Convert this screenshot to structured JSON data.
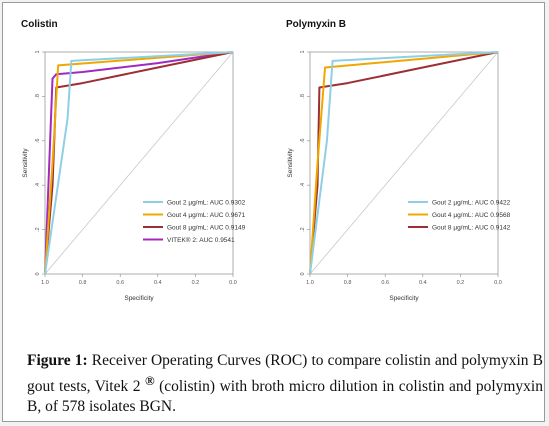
{
  "chart_data": [
    {
      "type": "line",
      "title": "Colistin",
      "xlabel": "Specificity",
      "ylabel": "Sensitivity",
      "x_reversed": true,
      "xlim": [
        1.0,
        0.0
      ],
      "ylim": [
        0.0,
        1.0
      ],
      "xticks": [
        "1.0",
        "0.8",
        "0.6",
        "0.4",
        "0.2",
        "0.0"
      ],
      "yticks": [
        "0",
        ".2",
        ".4",
        ".6",
        ".8",
        "1"
      ],
      "legend_position": "bottom-right",
      "reference_line": true,
      "series": [
        {
          "name": "Gout 2 µg/mL: AUC 0.9302",
          "color": "#8ecfe6",
          "points": [
            [
              1.0,
              0.0
            ],
            [
              0.88,
              0.7
            ],
            [
              0.86,
              0.96
            ],
            [
              0.0,
              1.0
            ]
          ]
        },
        {
          "name": "Gout 4 µg/mL: AUC 0.9671",
          "color": "#f0a800",
          "points": [
            [
              1.0,
              0.0
            ],
            [
              0.96,
              0.5
            ],
            [
              0.93,
              0.94
            ],
            [
              0.0,
              1.0
            ]
          ]
        },
        {
          "name": "Gout 8 µg/mL: AUC 0.9149",
          "color": "#9c2f33",
          "points": [
            [
              1.0,
              0.0
            ],
            [
              0.96,
              0.4
            ],
            [
              0.94,
              0.84
            ],
            [
              0.8,
              0.86
            ],
            [
              0.4,
              0.93
            ],
            [
              0.0,
              1.0
            ]
          ]
        },
        {
          "name": "VITEK® 2: AUC 0.9541",
          "color": "#a02ac0",
          "points": [
            [
              1.0,
              0.0
            ],
            [
              0.96,
              0.88
            ],
            [
              0.94,
              0.9
            ],
            [
              0.8,
              0.91
            ],
            [
              0.4,
              0.95
            ],
            [
              0.0,
              1.0
            ]
          ]
        }
      ]
    },
    {
      "type": "line",
      "title": "Polymyxin B",
      "xlabel": "Specificity",
      "ylabel": "Sensitivity",
      "x_reversed": true,
      "xlim": [
        1.0,
        0.0
      ],
      "ylim": [
        0.0,
        1.0
      ],
      "xticks": [
        "1.0",
        "0.8",
        "0.6",
        "0.4",
        "0.2",
        "0.0"
      ],
      "yticks": [
        "0",
        ".2",
        ".4",
        ".6",
        ".8",
        "1"
      ],
      "legend_position": "bottom-right",
      "reference_line": true,
      "series": [
        {
          "name": "Gout 2 µg/mL: AUC 0.9422",
          "color": "#8ecfe6",
          "points": [
            [
              1.0,
              0.0
            ],
            [
              0.91,
              0.6
            ],
            [
              0.88,
              0.96
            ],
            [
              0.0,
              1.0
            ]
          ]
        },
        {
          "name": "Gout 4 µg/mL: AUC 0.9568",
          "color": "#f0a800",
          "points": [
            [
              1.0,
              0.0
            ],
            [
              0.96,
              0.5
            ],
            [
              0.92,
              0.93
            ],
            [
              0.0,
              1.0
            ]
          ]
        },
        {
          "name": "Gout 8 µg/mL: AUC 0.9142",
          "color": "#9c2f33",
          "points": [
            [
              1.0,
              0.0
            ],
            [
              0.96,
              0.4
            ],
            [
              0.95,
              0.84
            ],
            [
              0.8,
              0.86
            ],
            [
              0.4,
              0.93
            ],
            [
              0.0,
              1.0
            ]
          ]
        }
      ]
    }
  ],
  "caption": {
    "label": "Figure 1:",
    "text_before_mark": " Receiver Operating Curves (ROC) to compare colistin and polymyxin B gout tests, Vitek 2 ",
    "mark": "®",
    "text_after_mark": " (colistin) with broth micro dilution in colistin and polymyxin B, of 578 isolates BGN."
  }
}
